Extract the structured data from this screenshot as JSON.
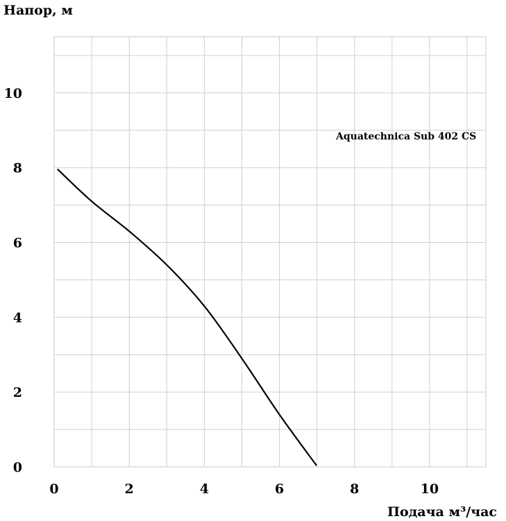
{
  "chart_data": {
    "type": "line",
    "ylabel": "Напор, м",
    "xlabel": "Подача  м³/час",
    "xlim": [
      0,
      11.5
    ],
    "ylim": [
      0,
      11.5
    ],
    "x_ticks": [
      0,
      2,
      4,
      6,
      8,
      10
    ],
    "y_ticks": [
      0,
      2,
      4,
      6,
      8,
      10
    ],
    "grid": true,
    "grid_step": 1,
    "series": [
      {
        "name": "Aquatechnica Sub 402 CS",
        "color": "#000000",
        "x": [
          0.1,
          1,
          2,
          3,
          4,
          5,
          6,
          6.98
        ],
        "y": [
          7.95,
          7.1,
          6.3,
          5.4,
          4.3,
          2.9,
          1.4,
          0.05
        ]
      }
    ],
    "legend": {
      "text": "Aquatechnica Sub 402 CS",
      "placement": "top-right"
    }
  }
}
